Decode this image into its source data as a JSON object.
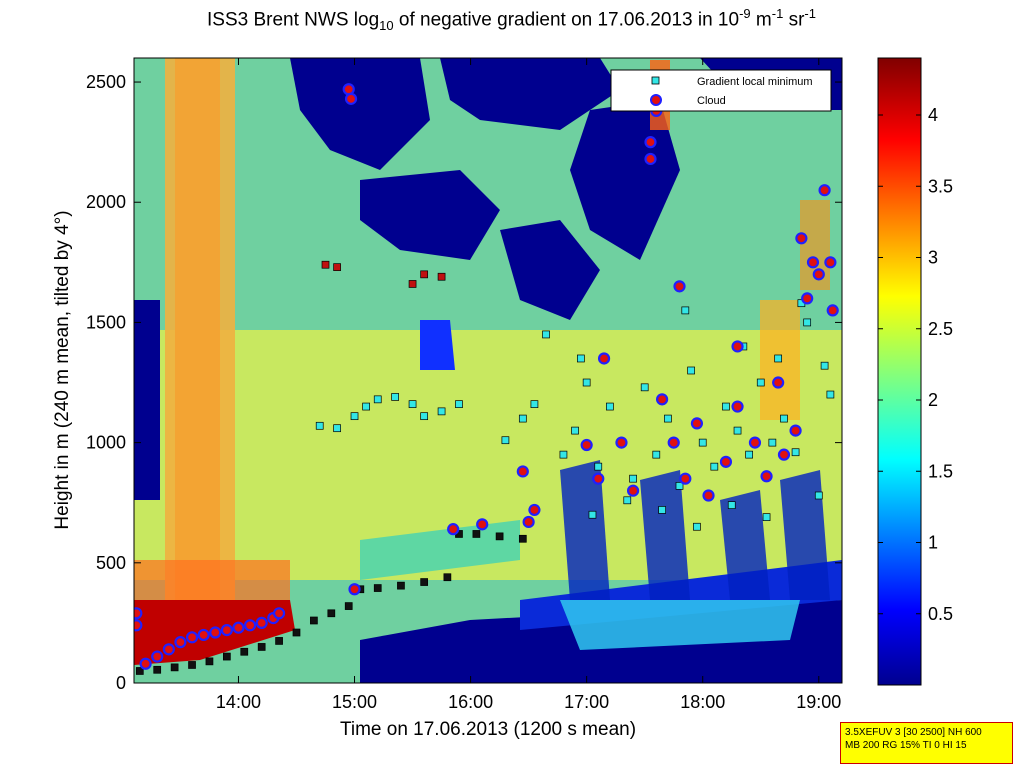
{
  "title": {
    "prefix": "ISS3 Brent NWS log",
    "sub": "10",
    "mid1": " of negative gradient on 17.06.2013 in 10",
    "sup1": "-9",
    "mid2": " m",
    "sup2": "-1",
    "mid3": " sr",
    "sup3": "-1"
  },
  "info_box": {
    "line1": "3.5XEFUV 3 [30 2500] NH 600",
    "line2": "MB 200 RG 15% TI 0 HI 15"
  },
  "colors": {
    "local_min_marker": "#33e6e6",
    "cloud_marker_fill": "#e01010",
    "cloud_marker_edge": "#2020ff",
    "background_low": "#00008f",
    "colormap": "jet"
  },
  "chart_data": {
    "type": "heatmap",
    "title": "ISS3 Brent NWS log10 of negative gradient on 17.06.2013 in 10-9 m-1 sr-1",
    "xlabel": "Time on 17.06.2013 (1200 s mean)",
    "ylabel": "Height in m (240 m mean, tilted by 4°)",
    "x_units": "hours",
    "xlim": [
      13.1,
      19.2
    ],
    "ylim": [
      0,
      2600
    ],
    "x_tick_values": [
      14,
      15,
      16,
      17,
      18,
      19
    ],
    "x_tick_labels": [
      "14:00",
      "15:00",
      "16:00",
      "17:00",
      "18:00",
      "19:00"
    ],
    "y_ticks": [
      0,
      500,
      1000,
      1500,
      2000,
      2500
    ],
    "colorbar": {
      "range": [
        0,
        4.4
      ],
      "ticks": [
        0.5,
        1,
        1.5,
        2,
        2.5,
        3,
        3.5,
        4
      ],
      "tick_labels": [
        "0.5",
        "1",
        "1.5",
        "2",
        "2.5",
        "3",
        "3.5",
        "4"
      ]
    },
    "legend": {
      "placement": "top-right",
      "entries": [
        "Gradient local minimum",
        "Cloud"
      ]
    },
    "series": [
      {
        "name": "Gradient local minimum",
        "marker": "square",
        "points": [
          [
            13.15,
            50
          ],
          [
            13.3,
            55
          ],
          [
            13.45,
            65
          ],
          [
            13.6,
            75
          ],
          [
            13.75,
            90
          ],
          [
            13.9,
            110
          ],
          [
            14.05,
            130
          ],
          [
            14.2,
            150
          ],
          [
            14.35,
            175
          ],
          [
            14.5,
            210
          ],
          [
            14.65,
            260
          ],
          [
            14.8,
            290
          ],
          [
            14.95,
            320
          ],
          [
            15.05,
            390
          ],
          [
            15.2,
            395
          ],
          [
            15.4,
            405
          ],
          [
            15.6,
            420
          ],
          [
            15.8,
            440
          ],
          [
            15.9,
            620
          ],
          [
            16.05,
            620
          ],
          [
            16.25,
            610
          ],
          [
            16.45,
            600
          ],
          [
            14.7,
            1070
          ],
          [
            14.85,
            1060
          ],
          [
            15.0,
            1110
          ],
          [
            15.1,
            1150
          ],
          [
            15.2,
            1180
          ],
          [
            15.35,
            1190
          ],
          [
            15.5,
            1160
          ],
          [
            15.6,
            1110
          ],
          [
            15.75,
            1130
          ],
          [
            15.9,
            1160
          ],
          [
            14.75,
            1740
          ],
          [
            14.85,
            1730
          ],
          [
            15.5,
            1660
          ],
          [
            15.6,
            1700
          ],
          [
            15.75,
            1690
          ],
          [
            16.3,
            1010
          ],
          [
            16.45,
            1100
          ],
          [
            16.55,
            1160
          ],
          [
            16.65,
            1450
          ],
          [
            16.8,
            950
          ],
          [
            16.9,
            1050
          ],
          [
            17.0,
            1250
          ],
          [
            17.1,
            900
          ],
          [
            17.2,
            1150
          ],
          [
            17.3,
            1000
          ],
          [
            17.4,
            850
          ],
          [
            17.5,
            1230
          ],
          [
            17.6,
            950
          ],
          [
            17.7,
            1100
          ],
          [
            17.8,
            820
          ],
          [
            17.9,
            1300
          ],
          [
            18.0,
            1000
          ],
          [
            18.1,
            900
          ],
          [
            18.2,
            1150
          ],
          [
            18.3,
            1050
          ],
          [
            18.4,
            950
          ],
          [
            18.5,
            1250
          ],
          [
            18.6,
            1000
          ],
          [
            18.7,
            1100
          ],
          [
            18.8,
            960
          ],
          [
            18.9,
            1500
          ],
          [
            19.0,
            780
          ],
          [
            19.1,
            1200
          ],
          [
            17.05,
            700
          ],
          [
            17.35,
            760
          ],
          [
            17.65,
            720
          ],
          [
            17.95,
            650
          ],
          [
            18.25,
            740
          ],
          [
            18.55,
            690
          ],
          [
            18.35,
            1400
          ],
          [
            18.65,
            1350
          ],
          [
            18.85,
            1580
          ],
          [
            19.05,
            1320
          ],
          [
            17.85,
            1550
          ],
          [
            16.95,
            1350
          ]
        ]
      },
      {
        "name": "Cloud",
        "marker": "circle",
        "points": [
          [
            13.12,
            290
          ],
          [
            13.12,
            240
          ],
          [
            13.2,
            80
          ],
          [
            13.3,
            110
          ],
          [
            13.4,
            140
          ],
          [
            13.5,
            170
          ],
          [
            13.6,
            190
          ],
          [
            13.7,
            200
          ],
          [
            13.8,
            210
          ],
          [
            13.9,
            220
          ],
          [
            14.0,
            230
          ],
          [
            14.1,
            240
          ],
          [
            14.2,
            250
          ],
          [
            14.3,
            270
          ],
          [
            14.35,
            290
          ],
          [
            15.0,
            390
          ],
          [
            14.95,
            2470
          ],
          [
            14.97,
            2430
          ],
          [
            15.85,
            640
          ],
          [
            16.1,
            660
          ],
          [
            16.45,
            880
          ],
          [
            16.55,
            720
          ],
          [
            16.5,
            670
          ],
          [
            17.0,
            990
          ],
          [
            17.1,
            850
          ],
          [
            17.15,
            1350
          ],
          [
            17.3,
            1000
          ],
          [
            17.4,
            800
          ],
          [
            17.55,
            2250
          ],
          [
            17.55,
            2180
          ],
          [
            17.6,
            2380
          ],
          [
            17.65,
            1180
          ],
          [
            17.75,
            1000
          ],
          [
            17.8,
            1650
          ],
          [
            17.85,
            850
          ],
          [
            17.95,
            1080
          ],
          [
            18.05,
            780
          ],
          [
            18.2,
            920
          ],
          [
            18.3,
            1150
          ],
          [
            18.45,
            1000
          ],
          [
            18.55,
            860
          ],
          [
            18.65,
            1250
          ],
          [
            18.8,
            1050
          ],
          [
            18.85,
            1850
          ],
          [
            18.9,
            1600
          ],
          [
            18.95,
            1750
          ],
          [
            19.0,
            1700
          ],
          [
            19.05,
            2050
          ],
          [
            19.1,
            1750
          ],
          [
            19.12,
            1550
          ],
          [
            18.7,
            950
          ],
          [
            18.3,
            1400
          ]
        ]
      }
    ]
  }
}
